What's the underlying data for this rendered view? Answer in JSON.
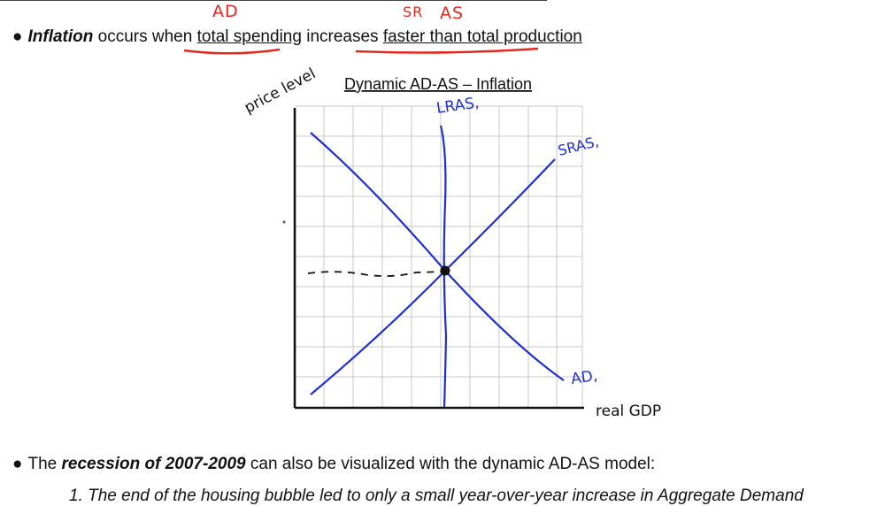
{
  "annotations": {
    "ad": "AD",
    "sr": "SR",
    "as": "AS"
  },
  "bullet1": {
    "marker": "●",
    "term": "Inflation",
    "part1": "occurs when",
    "link1": "total spending",
    "part2": "increases",
    "link2": "faster than total production"
  },
  "diagram": {
    "title": "Dynamic AD-AS – Inflation",
    "y_label": "price level",
    "x_label": "real GDP",
    "curves": {
      "lras": "LRAS,",
      "sras": "SRAS,",
      "ad": "AD,"
    },
    "colors": {
      "curves": "#1f2fcf",
      "grid": "#c8c8c8",
      "annotation": "#e0281e"
    }
  },
  "bullet2": {
    "marker": "●",
    "part1": "The",
    "term": "recession of 2007-2009",
    "part2": "can also be visualized with the dynamic AD-AS model:"
  },
  "list": {
    "item1": "1. The end of the housing bubble led to only a small year-over-year increase in Aggregate Demand"
  }
}
